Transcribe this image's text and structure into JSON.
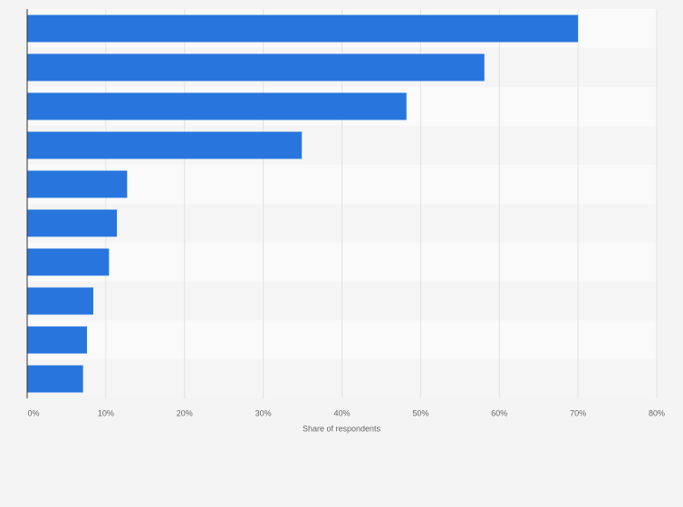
{
  "chart_data": {
    "type": "bar",
    "orientation": "horizontal",
    "categories": [
      null,
      null,
      null,
      null,
      null,
      null,
      null,
      null,
      null,
      null
    ],
    "values": [
      70.0,
      58.1,
      48.2,
      34.9,
      12.7,
      11.4,
      10.4,
      8.4,
      7.6,
      7.1
    ],
    "color": "#2876dd",
    "xlabel": "Share of respondents",
    "xlim": [
      0,
      80
    ],
    "xticks": [
      {
        "value": 0,
        "label": "0%"
      },
      {
        "value": 10,
        "label": "10%"
      },
      {
        "value": 20,
        "label": "20%"
      },
      {
        "value": 30,
        "label": "30%"
      },
      {
        "value": 40,
        "label": "40%"
      },
      {
        "value": 50,
        "label": "50%"
      },
      {
        "value": 60,
        "label": "60%"
      },
      {
        "value": 70,
        "label": "70%"
      },
      {
        "value": 80,
        "label": "80%"
      }
    ],
    "grid": true
  }
}
